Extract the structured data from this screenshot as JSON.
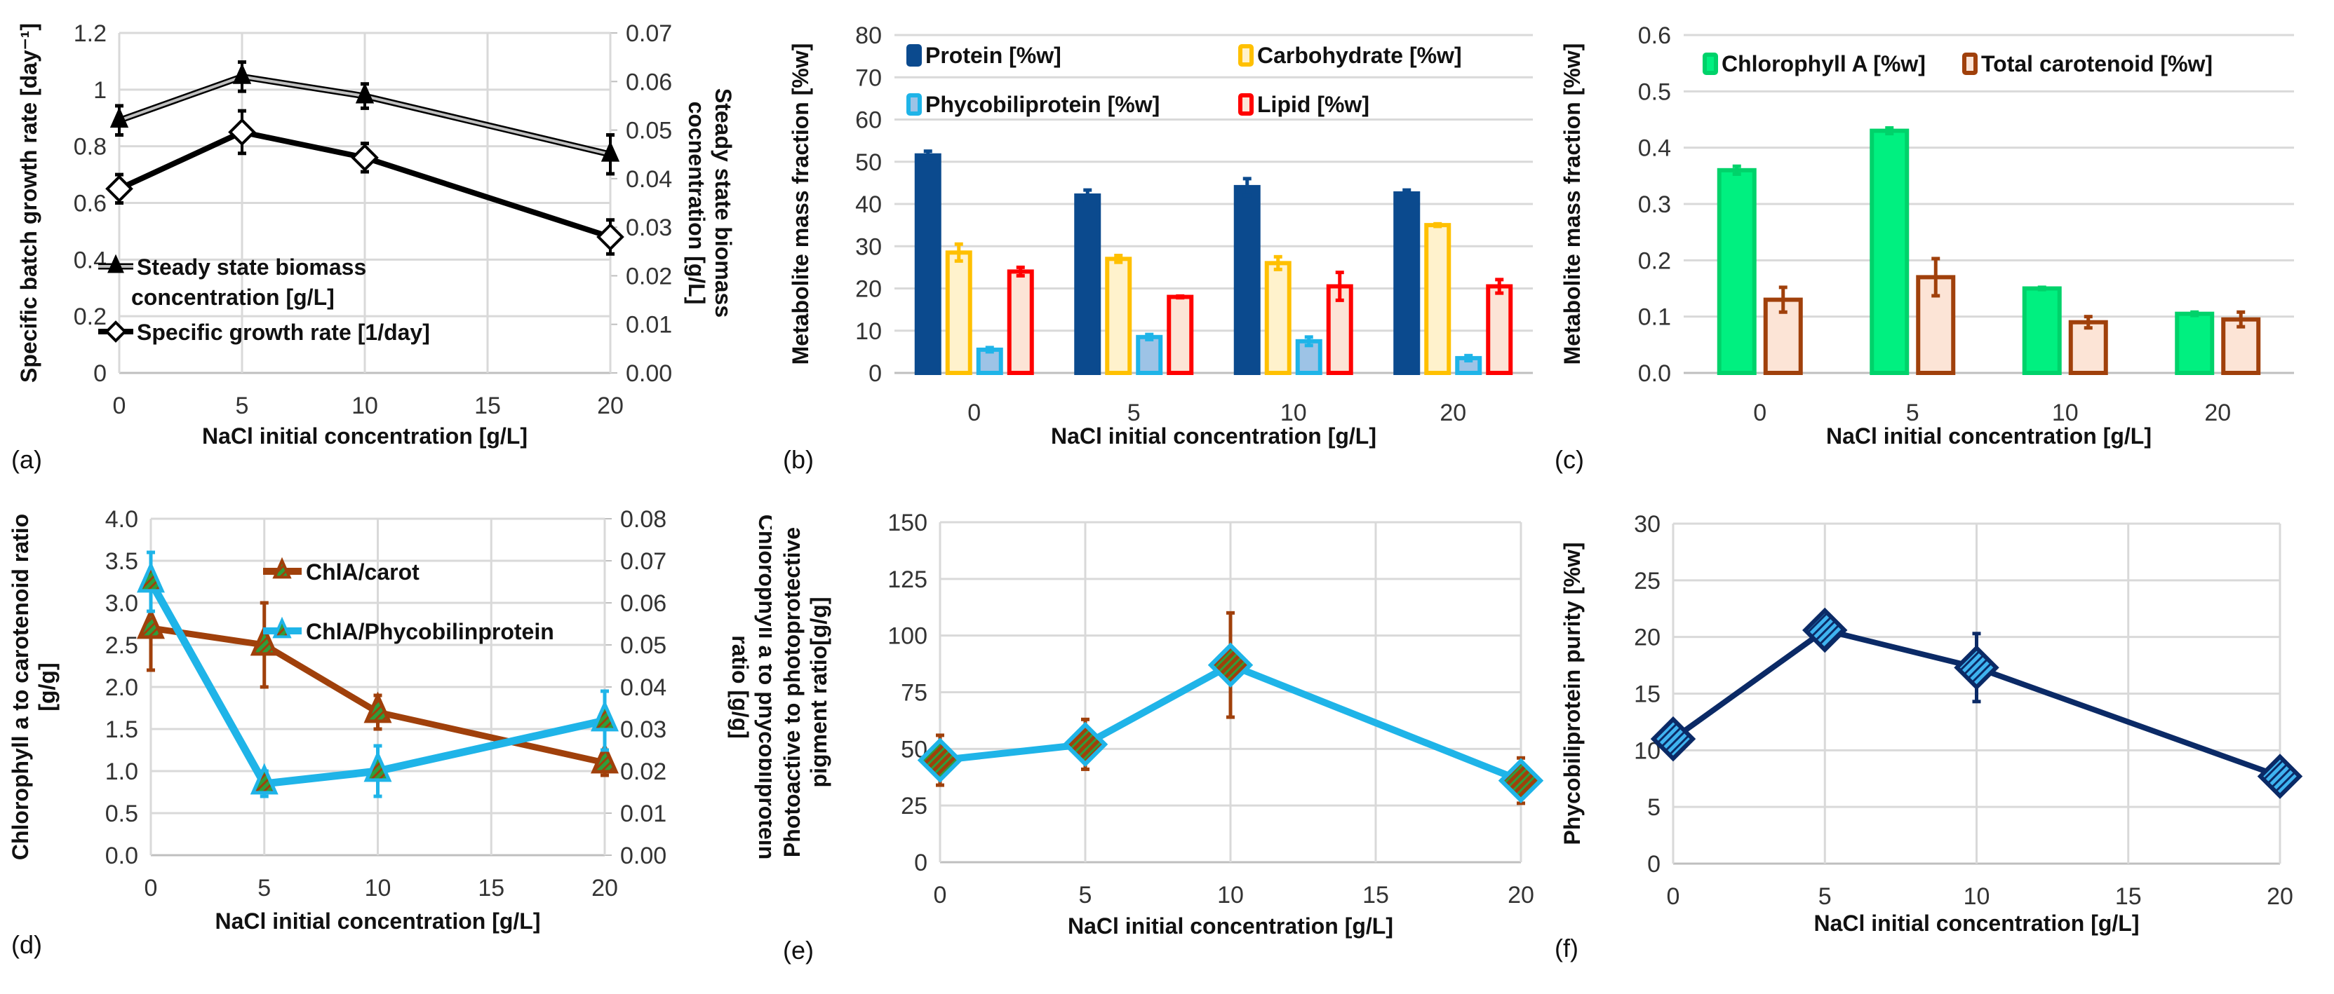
{
  "chart_data": [
    {
      "id": "a",
      "panel_label": "(a)",
      "type": "line",
      "x": [
        0,
        5,
        10,
        20
      ],
      "xlabel": "NaCl initial concentration [g/L]",
      "xticks": [
        "0",
        "5",
        "10",
        "15",
        "20"
      ],
      "xlim": [
        0,
        20
      ],
      "ylabel": "Specific batch growth rate [day⁻¹]",
      "ylim": [
        0,
        1.2
      ],
      "yticks": [
        "0",
        "0.2",
        "0.4",
        "0.6",
        "0.8",
        "1",
        "1.2"
      ],
      "y2label_lines": [
        "Steady state biomass",
        "cocnentration [g/L]"
      ],
      "y2lim": [
        0,
        0.07
      ],
      "y2ticks": [
        "0.00",
        "0.01",
        "0.02",
        "0.03",
        "0.04",
        "0.05",
        "0.06",
        "0.07"
      ],
      "grid": true,
      "legend_position": "bottom-left",
      "series": [
        {
          "name": "Steady state biomass concentration [g/L]",
          "legend_lines": [
            "Steady state biomass",
            "concentration [g/L]"
          ],
          "axis": "right",
          "marker": "triangle",
          "color": "#000000",
          "values": [
            0.052,
            0.061,
            0.057,
            0.045
          ],
          "errors": [
            0.003,
            0.003,
            0.0025,
            0.004
          ]
        },
        {
          "name": "Specific growth rate [1/day]",
          "axis": "left",
          "marker": "diamond-open",
          "color": "#000000",
          "values": [
            0.65,
            0.85,
            0.76,
            0.48
          ],
          "errors": [
            0.05,
            0.075,
            0.05,
            0.06
          ]
        }
      ]
    },
    {
      "id": "b",
      "panel_label": "(b)",
      "type": "bar",
      "categories": [
        "0",
        "5",
        "10",
        "20"
      ],
      "xlabel": "NaCl initial concentration [g/L]",
      "ylabel": "Metabolite mass fraction [%w]",
      "ylim": [
        0,
        80
      ],
      "yticks": [
        "0",
        "10",
        "20",
        "30",
        "40",
        "50",
        "60",
        "70",
        "80"
      ],
      "grid": true,
      "legend_position": "top",
      "series": [
        {
          "name": "Protein [%w]",
          "color": "#0b4a8e",
          "fill": "#0b4a8e",
          "values": [
            51.5,
            42,
            44,
            42.5
          ],
          "errors": [
            1,
            1.3,
            2,
            0.8
          ]
        },
        {
          "name": "Carbohydrate [%w]",
          "color": "#ffc000",
          "fill": "#fff2cc",
          "values": [
            28.5,
            27,
            26,
            35
          ],
          "errors": [
            2,
            0.8,
            1.5,
            0.3
          ]
        },
        {
          "name": "Phycobiliprotein [%w]",
          "color": "#1fb4e8",
          "fill": "#9dc3e6",
          "values": [
            5.5,
            8.5,
            7.5,
            3.5
          ],
          "errors": [
            0.5,
            0.6,
            1,
            0.6
          ]
        },
        {
          "name": "Lipid [%w]",
          "color": "#ff0000",
          "fill": "#fce4d6",
          "values": [
            24,
            18,
            20.5,
            20.5
          ],
          "errors": [
            1,
            0.2,
            3.3,
            1.6
          ]
        }
      ]
    },
    {
      "id": "c",
      "panel_label": "(c)",
      "type": "bar",
      "categories": [
        "0",
        "5",
        "10",
        "20"
      ],
      "xlabel": "NaCl initial concentration [g/L]",
      "ylabel": "Metabolite mass fraction [%w]",
      "ylim": [
        0,
        0.6
      ],
      "yticks": [
        "0.0",
        "0.1",
        "0.2",
        "0.3",
        "0.4",
        "0.5",
        "0.6"
      ],
      "grid": true,
      "legend_position": "top",
      "series": [
        {
          "name": "Chlorophyll A [%w]",
          "color": "#00d26a",
          "fill": "#00f080",
          "values": [
            0.36,
            0.43,
            0.15,
            0.105
          ],
          "errors": [
            0.007,
            0.005,
            0.002,
            0.003
          ]
        },
        {
          "name": "Total carotenoid [%w]",
          "color": "#a0400b",
          "fill": "#fce4d6",
          "values": [
            0.13,
            0.17,
            0.09,
            0.095
          ],
          "errors": [
            0.022,
            0.033,
            0.01,
            0.013
          ]
        }
      ]
    },
    {
      "id": "d",
      "panel_label": "(d)",
      "type": "line",
      "x": [
        0,
        5,
        10,
        20
      ],
      "xlabel": "NaCl initial concentration [g/L]",
      "xticks": [
        "0",
        "5",
        "10",
        "15",
        "20"
      ],
      "xlim": [
        0,
        20
      ],
      "ylabel_lines": [
        "Chlorophyll a to carotenoid ratio",
        "[g/g]"
      ],
      "ylim": [
        0,
        4.0
      ],
      "yticks": [
        "0.0",
        "0.5",
        "1.0",
        "1.5",
        "2.0",
        "2.5",
        "3.0",
        "3.5",
        "4.0"
      ],
      "y2label_lines": [
        "Chlorophyll a to phycobilprotein",
        "ratio [g/g]"
      ],
      "y2lim": [
        0,
        0.08
      ],
      "y2ticks": [
        "0.00",
        "0.01",
        "0.02",
        "0.03",
        "0.04",
        "0.05",
        "0.06",
        "0.07",
        "0.08"
      ],
      "grid": true,
      "legend_position": "top-center",
      "series": [
        {
          "name": "ChlA/carot",
          "axis": "left",
          "marker": "triangle",
          "color": "#a0400b",
          "values": [
            2.7,
            2.5,
            1.7,
            1.1
          ],
          "errors": [
            0.5,
            0.5,
            0.2,
            0.15
          ]
        },
        {
          "name": "ChlA/Phycobilinprotein",
          "axis": "right",
          "marker": "triangle",
          "color": "#1fb4e8",
          "values": [
            0.065,
            0.017,
            0.02,
            0.032
          ],
          "errors": [
            0.007,
            0.003,
            0.006,
            0.007
          ]
        }
      ]
    },
    {
      "id": "e",
      "panel_label": "(e)",
      "type": "line",
      "x": [
        0,
        5,
        10,
        20
      ],
      "xlabel": "NaCl initial concentration [g/L]",
      "xticks": [
        "0",
        "5",
        "10",
        "15",
        "20"
      ],
      "xlim": [
        0,
        20
      ],
      "ylabel_lines": [
        "Photoactive to photoprotective",
        "pigment ratio[g/g]"
      ],
      "ylim": [
        0,
        150
      ],
      "yticks": [
        "0",
        "25",
        "50",
        "75",
        "100",
        "125",
        "150"
      ],
      "grid": true,
      "series": [
        {
          "name": "Photoactive to photoprotective pigment ratio",
          "marker": "diamond",
          "color": "#1fb4e8",
          "errbar_color": "#a0400b",
          "values": [
            45,
            52,
            87,
            36
          ],
          "errors": [
            11,
            11,
            23,
            10
          ]
        }
      ]
    },
    {
      "id": "f",
      "panel_label": "(f)",
      "type": "line",
      "x": [
        0,
        5,
        10,
        20
      ],
      "xlabel": "NaCl initial concentration [g/L]",
      "xticks": [
        "0",
        "5",
        "10",
        "15",
        "20"
      ],
      "xlim": [
        0,
        20
      ],
      "ylabel": "Phycobiliprotein purity [%w]",
      "ylim": [
        0,
        30
      ],
      "yticks": [
        "0",
        "5",
        "10",
        "15",
        "20",
        "25",
        "30"
      ],
      "grid": true,
      "series": [
        {
          "name": "Phycobiliprotein purity",
          "marker": "diamond",
          "color": "#0b2a66",
          "fill": "#3fb4f0",
          "values": [
            11,
            20.6,
            17.3,
            7.7
          ],
          "errors": [
            0.3,
            0.3,
            3,
            0.3
          ]
        }
      ]
    }
  ]
}
